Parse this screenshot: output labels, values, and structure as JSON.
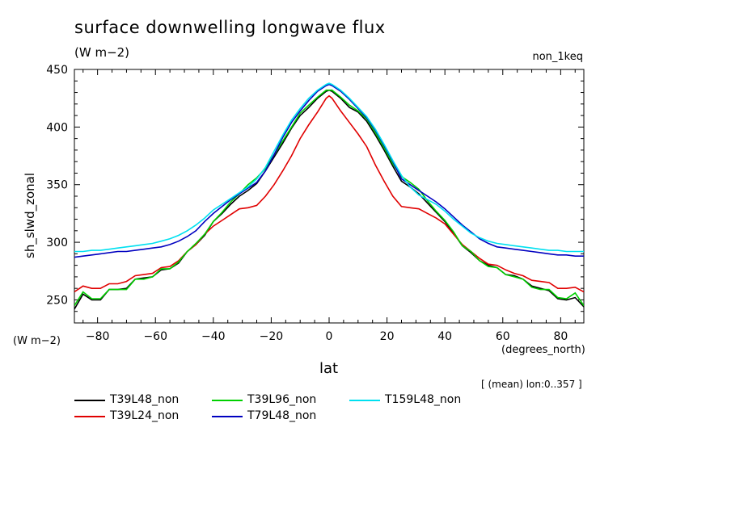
{
  "title": "surface downwelling longwave flux",
  "subtitle": "(W m−2)",
  "run_label": "non_1keq",
  "y_units": "(W m−2)",
  "x_units": "(degrees_north)",
  "meta_note": "[ (mean) lon:0..357 ]",
  "chart_data": {
    "type": "line",
    "title": "surface downwelling longwave flux",
    "xlabel": "lat",
    "ylabel": "sh_slwd_zonal",
    "xlim": [
      -88,
      88
    ],
    "ylim": [
      230,
      450
    ],
    "xticks": [
      -80,
      -60,
      -40,
      -20,
      0,
      20,
      40,
      60,
      80
    ],
    "yticks": [
      250,
      300,
      350,
      400,
      450
    ],
    "x": [
      -88,
      -85,
      -82,
      -79,
      -76,
      -73,
      -70,
      -67,
      -64,
      -61,
      -58,
      -55,
      -52,
      -49,
      -46,
      -43,
      -40,
      -37,
      -34,
      -31,
      -28,
      -25,
      -22,
      -19,
      -16,
      -13,
      -10,
      -7,
      -4,
      -1,
      0,
      1,
      4,
      7,
      10,
      13,
      16,
      19,
      22,
      25,
      28,
      31,
      34,
      37,
      40,
      43,
      46,
      49,
      52,
      55,
      58,
      61,
      64,
      67,
      70,
      73,
      76,
      79,
      82,
      85,
      88
    ],
    "series": [
      {
        "name": "T39L48_non",
        "color": "#000000",
        "values": [
          242,
          255,
          250,
          250,
          259,
          259,
          260,
          268,
          269,
          270,
          276,
          277,
          282,
          292,
          298,
          306,
          318,
          325,
          333,
          340,
          345,
          351,
          362,
          374,
          386,
          399,
          410,
          417,
          425,
          431,
          432,
          431,
          425,
          417,
          413,
          405,
          393,
          380,
          366,
          353,
          348,
          342,
          334,
          326,
          318,
          308,
          297,
          291,
          284,
          280,
          278,
          272,
          271,
          268,
          262,
          260,
          258,
          251,
          250,
          252,
          244
        ]
      },
      {
        "name": "T39L24_non",
        "color": "#e00000",
        "values": [
          257,
          262,
          260,
          260,
          264,
          264,
          266,
          271,
          272,
          273,
          278,
          279,
          284,
          292,
          298,
          307,
          314,
          319,
          324,
          329,
          330,
          332,
          340,
          350,
          362,
          375,
          390,
          402,
          413,
          425,
          427,
          425,
          414,
          404,
          394,
          383,
          367,
          353,
          340,
          331,
          330,
          329,
          325,
          321,
          316,
          307,
          298,
          292,
          286,
          281,
          280,
          276,
          273,
          271,
          267,
          266,
          265,
          260,
          260,
          261,
          257
        ]
      },
      {
        "name": "T39L96_non",
        "color": "#00d000",
        "values": [
          245,
          257,
          251,
          251,
          259,
          259,
          259,
          268,
          268,
          270,
          277,
          277,
          283,
          292,
          299,
          307,
          318,
          326,
          335,
          342,
          350,
          356,
          364,
          376,
          388,
          400,
          412,
          419,
          426,
          432,
          432,
          432,
          426,
          419,
          414,
          407,
          395,
          382,
          368,
          357,
          352,
          346,
          336,
          327,
          319,
          309,
          297,
          292,
          284,
          279,
          278,
          272,
          270,
          268,
          261,
          259,
          259,
          252,
          251,
          256,
          245
        ]
      },
      {
        "name": "T79L48_non",
        "color": "#0000c0",
        "values": [
          287,
          288,
          289,
          290,
          291,
          292,
          292,
          293,
          294,
          295,
          296,
          298,
          301,
          305,
          310,
          318,
          325,
          331,
          337,
          342,
          347,
          352,
          362,
          376,
          391,
          404,
          414,
          423,
          431,
          436,
          437,
          436,
          431,
          424,
          416,
          408,
          397,
          384,
          370,
          355,
          350,
          345,
          340,
          335,
          329,
          322,
          315,
          309,
          303,
          299,
          296,
          295,
          294,
          293,
          292,
          291,
          290,
          289,
          289,
          288,
          288
        ]
      },
      {
        "name": "T159L48_non",
        "color": "#00e0f0",
        "values": [
          292,
          292,
          293,
          293,
          294,
          295,
          296,
          297,
          298,
          299,
          301,
          303,
          306,
          310,
          315,
          321,
          328,
          333,
          338,
          343,
          348,
          355,
          365,
          379,
          393,
          406,
          416,
          425,
          432,
          437,
          438,
          437,
          432,
          425,
          417,
          409,
          398,
          385,
          371,
          358,
          348,
          341,
          337,
          333,
          327,
          320,
          314,
          308,
          304,
          301,
          299,
          298,
          297,
          296,
          295,
          294,
          293,
          293,
          292,
          292,
          292
        ]
      }
    ],
    "legend_placement": "bottom-left",
    "grid": false
  }
}
